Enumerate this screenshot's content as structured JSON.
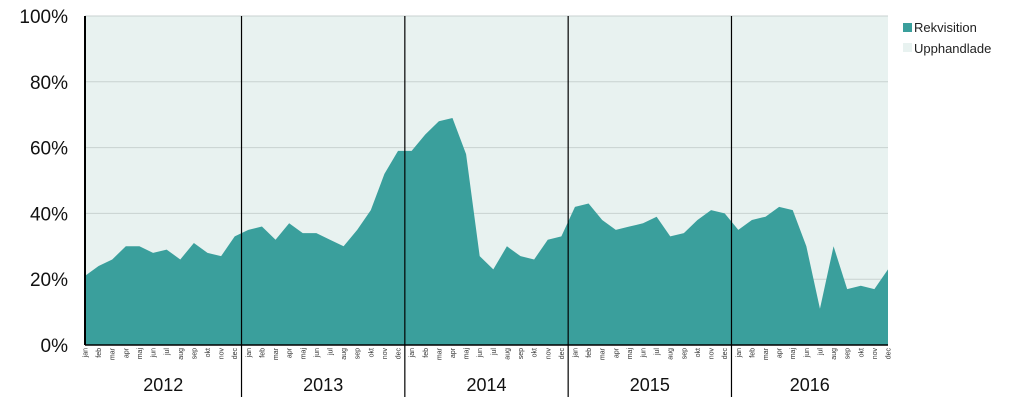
{
  "colors": {
    "plot_background": "#e8f2f0",
    "rekvisition": "#3a9f9c",
    "upphandlade": "#e8f2f0",
    "gridline": "#c8d2d0",
    "divider": "#000000"
  },
  "legend": {
    "placement": "top-right",
    "items": [
      {
        "name": "Rekvisition",
        "color": "#3a9f9c"
      },
      {
        "name": "Upphandlade",
        "color": "#e8f2f0"
      }
    ]
  },
  "chart_data": {
    "type": "area",
    "stacked": true,
    "percent": true,
    "ylim": [
      0,
      100
    ],
    "yticks": [
      "0%",
      "20%",
      "40%",
      "60%",
      "80%",
      "100%"
    ],
    "grid": true,
    "months": [
      "jan",
      "feb",
      "mar",
      "apr",
      "maj",
      "jun",
      "jul",
      "aug",
      "sep",
      "okt",
      "nov",
      "dec"
    ],
    "years": [
      "2012",
      "2013",
      "2014",
      "2015",
      "2016"
    ],
    "series": [
      {
        "name": "Rekvisition",
        "values": [
          21,
          24,
          26,
          30,
          30,
          28,
          29,
          26,
          31,
          28,
          27,
          33,
          35,
          36,
          32,
          37,
          34,
          34,
          32,
          30,
          35,
          41,
          52,
          59,
          59,
          64,
          68,
          69,
          58,
          27,
          23,
          30,
          27,
          26,
          32,
          33,
          42,
          43,
          38,
          35,
          36,
          37,
          39,
          33,
          34,
          38,
          41,
          40,
          35,
          38,
          39,
          42,
          41,
          30,
          11,
          30,
          17,
          18,
          17,
          23
        ]
      },
      {
        "name": "Upphandlade",
        "values": [
          79,
          76,
          74,
          70,
          70,
          72,
          71,
          74,
          69,
          72,
          73,
          67,
          65,
          64,
          68,
          63,
          66,
          66,
          68,
          70,
          65,
          59,
          48,
          41,
          41,
          36,
          32,
          31,
          42,
          73,
          77,
          70,
          73,
          74,
          68,
          67,
          58,
          57,
          62,
          65,
          64,
          63,
          61,
          67,
          66,
          62,
          59,
          60,
          65,
          62,
          61,
          58,
          59,
          70,
          89,
          70,
          83,
          82,
          83,
          77
        ]
      }
    ]
  }
}
